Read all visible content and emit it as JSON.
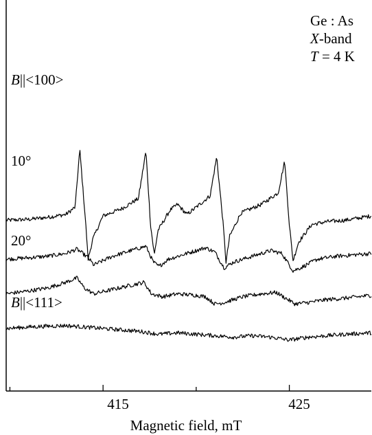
{
  "chart_data": {
    "type": "line",
    "title": "",
    "xlabel": "Magnetic field, mT",
    "ylabel": "",
    "x_range": [
      409.8,
      429.4
    ],
    "x_ticks": [
      415,
      425
    ],
    "x_minor_ticks": [
      410,
      420
    ],
    "annotation": {
      "line1": "Ge : As",
      "line2_italic": "X",
      "line2_rest": "-band",
      "line3_italic": "T",
      "line3_rest": " = 4 K"
    },
    "series": [
      {
        "name": "B||<100>",
        "label_italic": "B",
        "label_rest": "||<100>",
        "baseline_offset": 3.6,
        "points": [
          [
            409.8,
            0.15
          ],
          [
            411.0,
            0.18
          ],
          [
            412.0,
            0.25
          ],
          [
            413.0,
            0.35
          ],
          [
            413.5,
            0.6
          ],
          [
            413.75,
            2.6
          ],
          [
            414.05,
            0.2
          ],
          [
            414.2,
            -1.2
          ],
          [
            414.45,
            -0.5
          ],
          [
            415.0,
            0.3
          ],
          [
            416.0,
            0.55
          ],
          [
            416.9,
            0.9
          ],
          [
            417.3,
            2.55
          ],
          [
            417.55,
            0.0
          ],
          [
            417.75,
            -1.05
          ],
          [
            417.95,
            -0.2
          ],
          [
            418.6,
            0.5
          ],
          [
            419.0,
            0.7
          ],
          [
            419.5,
            0.35
          ],
          [
            420.0,
            0.6
          ],
          [
            420.75,
            1.0
          ],
          [
            421.1,
            2.35
          ],
          [
            421.45,
            0.0
          ],
          [
            421.6,
            -1.3
          ],
          [
            421.8,
            -0.4
          ],
          [
            422.4,
            0.4
          ],
          [
            423.5,
            0.7
          ],
          [
            424.4,
            1.1
          ],
          [
            424.75,
            2.2
          ],
          [
            425.0,
            0.0
          ],
          [
            425.2,
            -1.25
          ],
          [
            425.5,
            -0.6
          ],
          [
            426.2,
            0.0
          ],
          [
            427.0,
            0.1
          ],
          [
            428.0,
            0.15
          ],
          [
            429.4,
            0.3
          ]
        ]
      },
      {
        "name": "10°",
        "label_italic": "",
        "label_rest": "10°",
        "baseline_offset": 2.4,
        "points": [
          [
            409.8,
            0.0
          ],
          [
            411.0,
            0.05
          ],
          [
            412.0,
            0.1
          ],
          [
            413.0,
            0.2
          ],
          [
            413.6,
            0.35
          ],
          [
            414.2,
            0.05
          ],
          [
            414.5,
            -0.2
          ],
          [
            415.5,
            0.1
          ],
          [
            416.5,
            0.3
          ],
          [
            417.3,
            0.45
          ],
          [
            417.7,
            -0.1
          ],
          [
            418.0,
            -0.25
          ],
          [
            418.5,
            0.0
          ],
          [
            419.5,
            0.2
          ],
          [
            420.5,
            0.4
          ],
          [
            421.0,
            0.25
          ],
          [
            421.5,
            -0.3
          ],
          [
            422.0,
            -0.1
          ],
          [
            423.0,
            0.1
          ],
          [
            424.0,
            0.3
          ],
          [
            424.6,
            0.2
          ],
          [
            425.2,
            -0.4
          ],
          [
            425.6,
            -0.3
          ],
          [
            426.5,
            0.0
          ],
          [
            427.5,
            0.1
          ],
          [
            429.4,
            0.2
          ]
        ]
      },
      {
        "name": "20°",
        "label_italic": "",
        "label_rest": "20°",
        "baseline_offset": 1.2,
        "points": [
          [
            409.8,
            0.0
          ],
          [
            411.0,
            0.1
          ],
          [
            412.0,
            0.2
          ],
          [
            413.0,
            0.4
          ],
          [
            413.6,
            0.55
          ],
          [
            414.0,
            0.2
          ],
          [
            414.5,
            0.0
          ],
          [
            415.5,
            0.15
          ],
          [
            416.5,
            0.3
          ],
          [
            417.2,
            0.4
          ],
          [
            417.6,
            0.0
          ],
          [
            418.2,
            -0.1
          ],
          [
            419.0,
            0.0
          ],
          [
            420.0,
            -0.05
          ],
          [
            420.5,
            -0.1
          ],
          [
            421.0,
            -0.35
          ],
          [
            421.5,
            -0.3
          ],
          [
            422.5,
            -0.1
          ],
          [
            423.5,
            0.0
          ],
          [
            424.3,
            0.05
          ],
          [
            424.8,
            -0.15
          ],
          [
            425.3,
            -0.35
          ],
          [
            426.0,
            -0.3
          ],
          [
            427.0,
            -0.2
          ],
          [
            428.0,
            -0.15
          ],
          [
            429.4,
            -0.05
          ]
        ]
      },
      {
        "name": "B||<111>",
        "label_italic": "B",
        "label_rest": "||<111>",
        "baseline_offset": 0.0,
        "points": [
          [
            409.8,
            0.0
          ],
          [
            411.0,
            0.05
          ],
          [
            412.0,
            0.08
          ],
          [
            413.0,
            0.1
          ],
          [
            414.0,
            0.05
          ],
          [
            415.0,
            0.0
          ],
          [
            416.0,
            -0.05
          ],
          [
            417.0,
            -0.1
          ],
          [
            418.0,
            -0.2
          ],
          [
            419.0,
            -0.15
          ],
          [
            420.0,
            -0.2
          ],
          [
            421.0,
            -0.25
          ],
          [
            422.0,
            -0.3
          ],
          [
            423.0,
            -0.25
          ],
          [
            424.0,
            -0.3
          ],
          [
            425.0,
            -0.4
          ],
          [
            426.0,
            -0.3
          ],
          [
            427.0,
            -0.25
          ],
          [
            428.0,
            -0.2
          ],
          [
            429.4,
            -0.15
          ]
        ]
      }
    ]
  }
}
